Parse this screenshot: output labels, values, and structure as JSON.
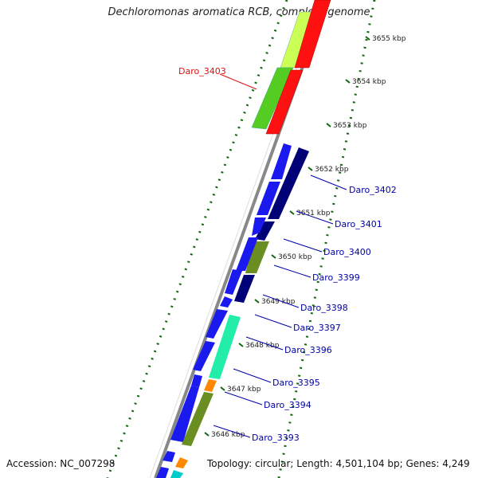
{
  "title": "Dechloromonas aromatica RCB, complete genome",
  "footer": {
    "accession": "Accession: NC_007298",
    "summary": "Topology: circular; Length: 4,501,104 bp; Genes: 4,249"
  },
  "ticks": [
    "3655 kbp",
    "3654 kbp",
    "3653 kbp",
    "3652 kbp",
    "3651 kbp",
    "3650 kbp",
    "3649 kbp",
    "3648 kbp",
    "3647 kbp",
    "3646 kbp"
  ],
  "genes": [
    {
      "label": "Daro_3403",
      "color": "#dd1111",
      "highlight": true
    },
    {
      "label": "Daro_3402",
      "color": "#0000aa",
      "highlight": false
    },
    {
      "label": "Daro_3401",
      "color": "#0000aa",
      "highlight": false
    },
    {
      "label": "Daro_3400",
      "color": "#0000aa",
      "highlight": false
    },
    {
      "label": "Daro_3399",
      "color": "#0000aa",
      "highlight": false
    },
    {
      "label": "Daro_3398",
      "color": "#0000aa",
      "highlight": false
    },
    {
      "label": "Daro_3397",
      "color": "#0000aa",
      "highlight": false
    },
    {
      "label": "Daro_3396",
      "color": "#0000aa",
      "highlight": false
    },
    {
      "label": "Daro_3395",
      "color": "#0000aa",
      "highlight": false
    },
    {
      "label": "Daro_3394",
      "color": "#0000aa",
      "highlight": false
    },
    {
      "label": "Daro_3393",
      "color": "#0000aa",
      "highlight": false
    }
  ],
  "colors": {
    "red": "#ff1111",
    "green": "#55cc22",
    "lime": "#ccff55",
    "blue": "#1a1aee",
    "navy": "#000077",
    "olive": "#6b8e23",
    "aqua": "#22eeaa",
    "orange": "#ff8800",
    "cyan": "#00cccc",
    "backbone": "#888888",
    "tick": "#116611"
  }
}
